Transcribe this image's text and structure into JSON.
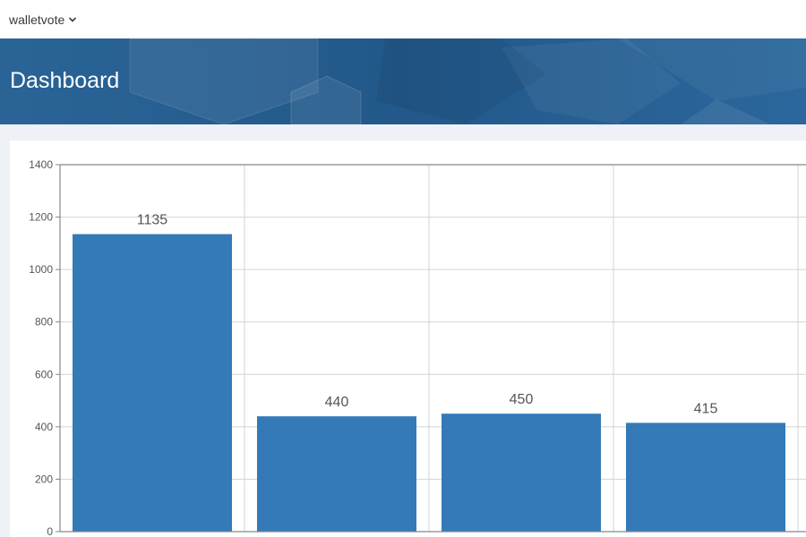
{
  "topbar": {
    "workspace_name": "walletvote",
    "dropdown_icon": "chevron-down-icon"
  },
  "header": {
    "title": "Dashboard"
  },
  "colors": {
    "banner": "#245d8f",
    "bar": "#337ab7",
    "grid": "#d3d3d3",
    "axis": "#888888",
    "label": "#555555",
    "page_bg": "#eef1f5"
  },
  "chart_data": {
    "type": "bar",
    "categories": [
      "",
      "",
      "",
      ""
    ],
    "values": [
      1135,
      440,
      450,
      415
    ],
    "data_labels": [
      "1135",
      "440",
      "450",
      "415"
    ],
    "yticks": [
      "0",
      "200",
      "400",
      "600",
      "800",
      "1000",
      "1200",
      "1400"
    ],
    "ylim": [
      0,
      1400
    ],
    "grid": true,
    "title": "",
    "xlabel": "",
    "ylabel": ""
  }
}
